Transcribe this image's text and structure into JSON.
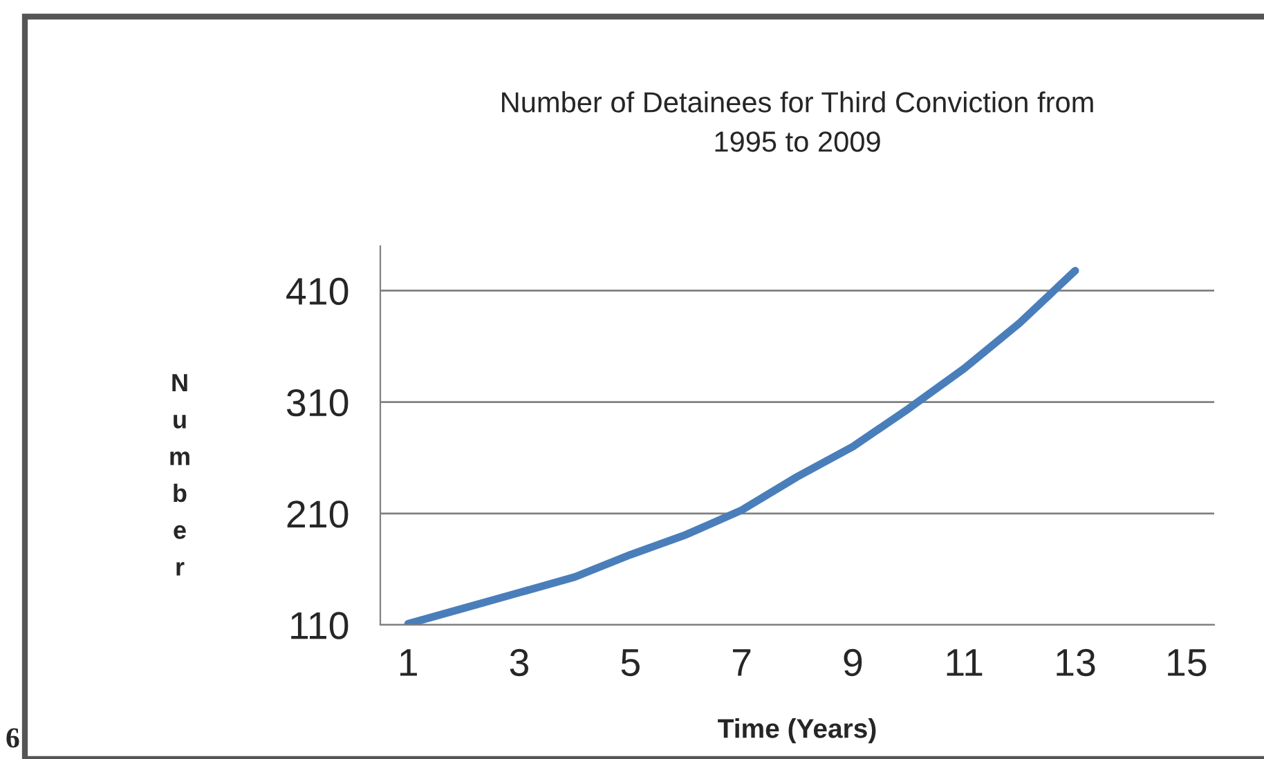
{
  "chart_data": {
    "type": "line",
    "title": "Number of Detainees for Third Conviction from\n1995 to 2009",
    "xlabel": "Time (Years)",
    "ylabel": "Number",
    "categories": [
      "1",
      null,
      "3",
      null,
      "5",
      null,
      "7",
      null,
      "9",
      null,
      "11",
      null,
      "13",
      null,
      "15"
    ],
    "series": [
      {
        "color": "#4a7ebb",
        "values": [
          111,
          125,
          139,
          153,
          173,
          191,
          213,
          243,
          270,
          304,
          340,
          381,
          428,
          null,
          null
        ]
      }
    ],
    "ylim": [
      110,
      450
    ],
    "yticks": [
      110,
      210,
      310,
      410
    ],
    "grid": "y",
    "legend": false,
    "marker": "none",
    "line_style": "solid",
    "annotations": [
      "6"
    ]
  }
}
